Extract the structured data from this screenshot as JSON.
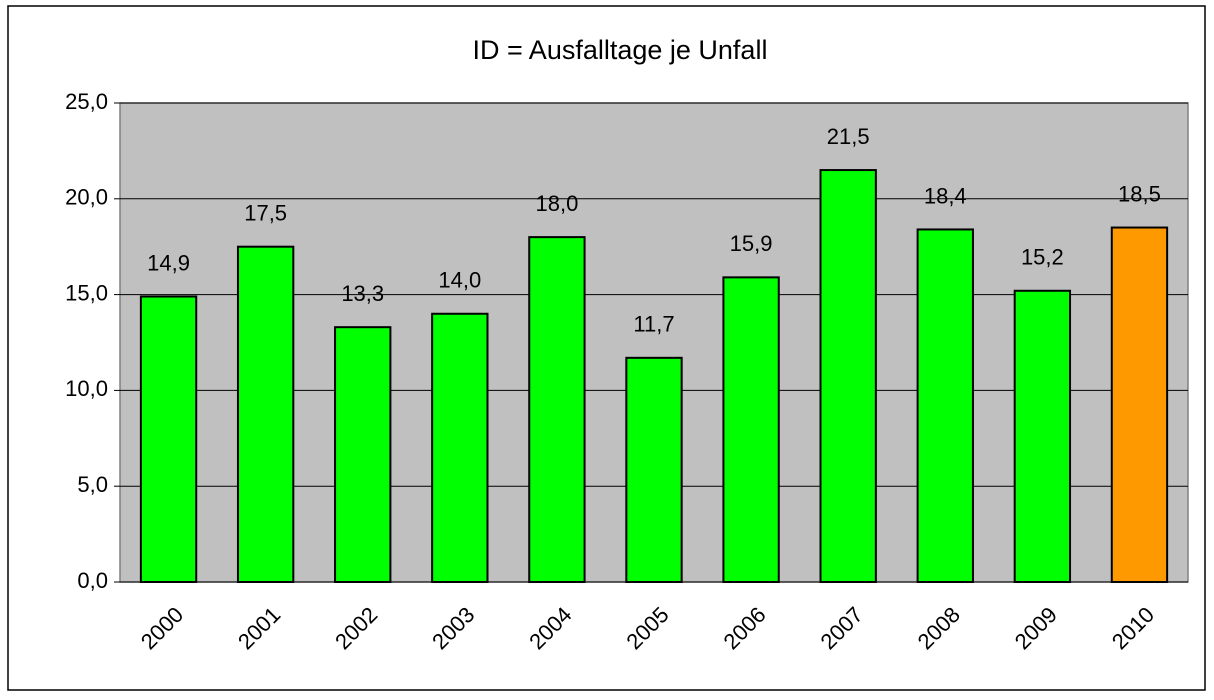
{
  "chart_data": {
    "type": "bar",
    "title": "ID  =  Ausfalltage je Unfall",
    "categories": [
      "2000",
      "2001",
      "2002",
      "2003",
      "2004",
      "2005",
      "2006",
      "2007",
      "2008",
      "2009",
      "2010"
    ],
    "values": [
      14.9,
      17.5,
      13.3,
      14.0,
      18.0,
      11.7,
      15.9,
      21.5,
      18.4,
      15.2,
      18.5
    ],
    "value_labels": [
      "14,9",
      "17,5",
      "13,3",
      "14,0",
      "18,0",
      "11,7",
      "15,9",
      "21,5",
      "18,4",
      "15,2",
      "18,5"
    ],
    "colors": [
      "#00ff00",
      "#00ff00",
      "#00ff00",
      "#00ff00",
      "#00ff00",
      "#00ff00",
      "#00ff00",
      "#00ff00",
      "#00ff00",
      "#00ff00",
      "#ff9900"
    ],
    "ylim": [
      0,
      25
    ],
    "yticks": [
      {
        "value": 0,
        "label": "0,0"
      },
      {
        "value": 5,
        "label": "5,0"
      },
      {
        "value": 10,
        "label": "10,0"
      },
      {
        "value": 15,
        "label": "15,0"
      },
      {
        "value": 20,
        "label": "20,0"
      },
      {
        "value": 25,
        "label": "25,0"
      }
    ],
    "grid": true
  }
}
